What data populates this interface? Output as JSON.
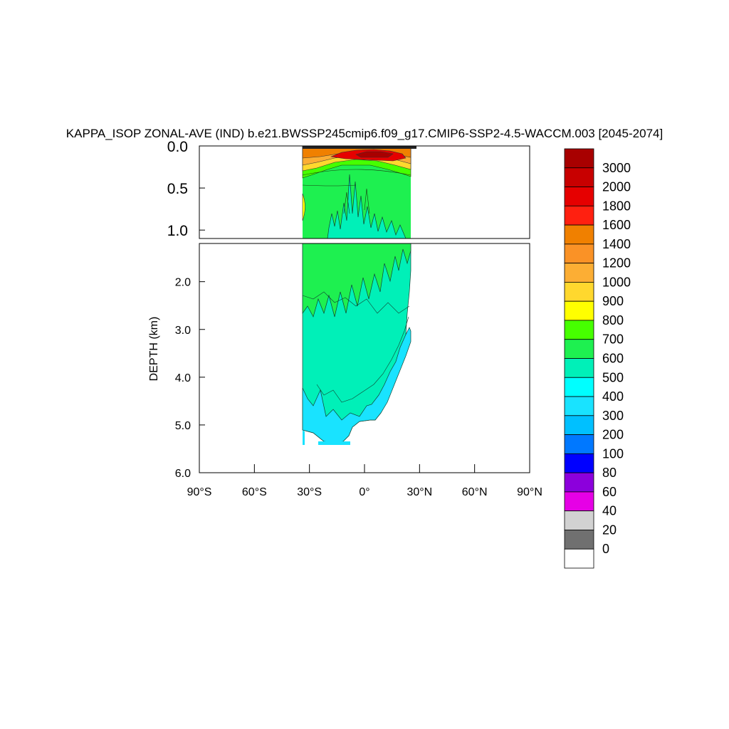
{
  "chart_data": {
    "type": "heatmap",
    "title": "KAPPA_ISOP ZONAL-AVE (IND) b.e21.BWSSP245cmip6.f09_g17.CMIP6-SSP2-4.5-WACCM.003 [2045-2074]",
    "ylabel": "DEPTH (km)",
    "xlabel": "",
    "x_ticks": [
      "90°S",
      "60°S",
      "30°S",
      "0°",
      "30°N",
      "60°N",
      "90°N"
    ],
    "xlim": [
      -90,
      90
    ],
    "upper_panel": {
      "ylim": [
        0.0,
        1.1
      ],
      "y_ticks": [
        "0.0",
        "0.5",
        "1.0"
      ]
    },
    "lower_panel": {
      "ylim": [
        1.2,
        6.0
      ],
      "y_ticks": [
        "2.0",
        "3.0",
        "4.0",
        "5.0",
        "6.0"
      ]
    },
    "colorbar": {
      "labels": [
        "3000",
        "2000",
        "1800",
        "1600",
        "1400",
        "1200",
        "1000",
        "900",
        "800",
        "700",
        "600",
        "500",
        "400",
        "300",
        "200",
        "100",
        "80",
        "60",
        "40",
        "20",
        "0"
      ],
      "colors": [
        "#a80000",
        "#c80000",
        "#e60000",
        "#ff2010",
        "#f08000",
        "#fa9226",
        "#fcae34",
        "#ffd82e",
        "#ffff00",
        "#46ff00",
        "#1ef050",
        "#00f0b8",
        "#00ffff",
        "#19e3ff",
        "#00c0ff",
        "#0078ff",
        "#0000ff",
        "#8c00dc",
        "#e600e6",
        "#d2d2d2",
        "#707070",
        "#ffffff"
      ]
    },
    "regions": [
      {
        "name": "upper-green",
        "panel": "upper",
        "value_band": "600-700"
      },
      {
        "name": "upper-orange",
        "panel": "upper",
        "value_band": "1000-1600"
      },
      {
        "name": "upper-red",
        "panel": "upper",
        "value_band": "1800-3000"
      },
      {
        "name": "lower-cyan",
        "panel": "lower",
        "value_band": "500-600"
      },
      {
        "name": "lower-blue",
        "panel": "lower",
        "value_band": "300-400"
      }
    ]
  }
}
